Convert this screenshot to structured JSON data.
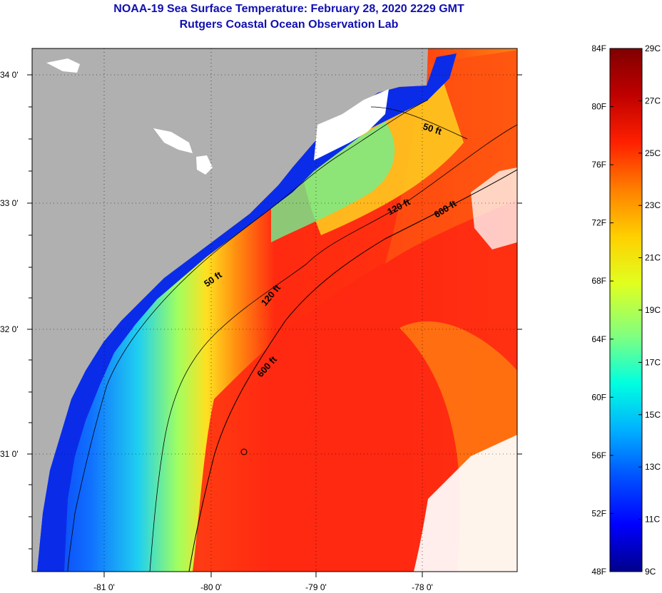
{
  "header": {
    "title": "NOAA-19 Sea Surface Temperature:  February 28, 2020 2229 GMT",
    "subtitle": "Rutgers Coastal Ocean Observation Lab"
  },
  "map": {
    "lat_labels": [
      "34 0'",
      "33 0'",
      "32 0'",
      "31 0'"
    ],
    "lon_labels": [
      "-81 0'",
      "-80 0'",
      "-79 0'",
      "-78 0'"
    ],
    "contour_labels": [
      "50 ft",
      "120 ft",
      "600 ft",
      "50 ft",
      "120 ft",
      "600 ft"
    ]
  },
  "colorbar": {
    "fahrenheit": [
      "84F",
      "80F",
      "76F",
      "72F",
      "68F",
      "64F",
      "60F",
      "56F",
      "52F",
      "48F"
    ],
    "celsius": [
      "29C",
      "27C",
      "25C",
      "23C",
      "21C",
      "19C",
      "17C",
      "15C",
      "13C",
      "11C",
      "9C"
    ],
    "colors": [
      "#00008b",
      "#0000ff",
      "#0050ff",
      "#00b0ff",
      "#00ffe0",
      "#80ff80",
      "#e0ff20",
      "#ffd000",
      "#ff8000",
      "#ff2000",
      "#c00000",
      "#800000"
    ]
  }
}
